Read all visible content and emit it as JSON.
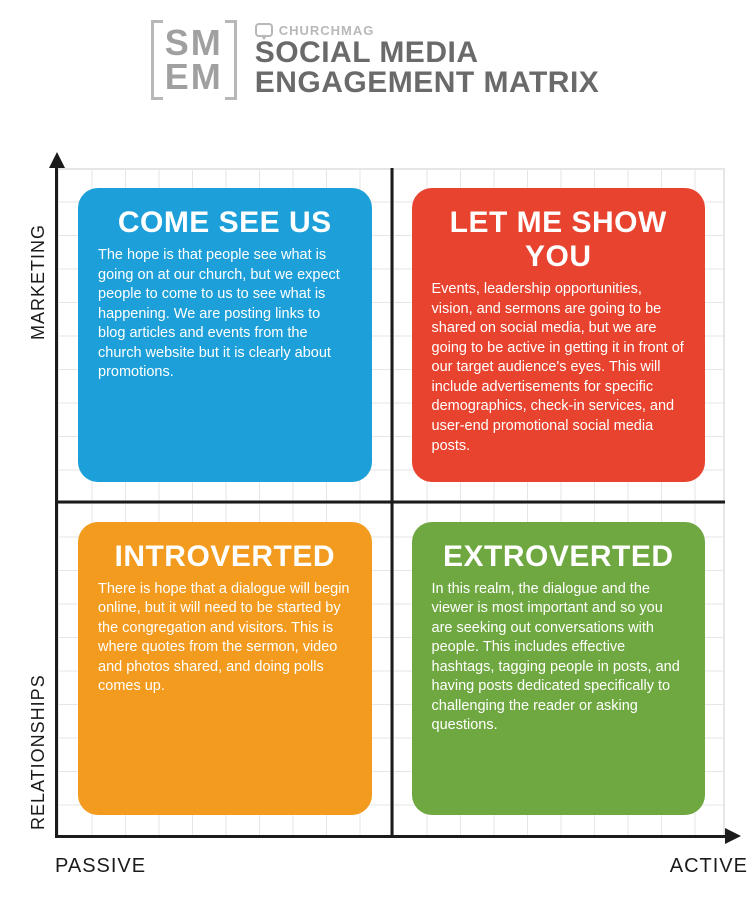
{
  "header": {
    "logo_line1": "SM",
    "logo_line2": "EM",
    "brand": "CHURCHMAG",
    "title_line1": "SOCIAL MEDIA",
    "title_line2": "ENGAGEMENT MATRIX"
  },
  "axes": {
    "y_top": "MARKETING",
    "y_bottom": "RELATIONSHIPS",
    "x_left": "PASSIVE",
    "x_right": "ACTIVE"
  },
  "matrix": {
    "type": "quadrant",
    "grid_color": "#e6e6e6",
    "axis_color": "#1b1b1b",
    "background_color": "#ffffff",
    "border_radius": 20,
    "title_fontsize": 30,
    "body_fontsize": 14.5,
    "quadrants": {
      "tl": {
        "title": "COME SEE US",
        "body": "The hope is that people see what is going on at our church, but we expect people to come to us to see what is happening. We are posting links to blog articles and events from the church website but it is clearly about promotions.",
        "color": "#1da0d9"
      },
      "tr": {
        "title": "LET ME SHOW YOU",
        "body": "Events, leadership opportunities, vision, and sermons are going to be shared on social media, but we are going to be active in getting it in front of our target audience's eyes. This will include advertisements for specific demographics, check-in services, and user-end promotional social media posts.",
        "color": "#e8432e"
      },
      "bl": {
        "title": "INTROVERTED",
        "body": "There is hope that a dialogue will begin online, but it will need to be started by the congregation and visitors. This is where quotes from the sermon, video and photos shared, and doing polls comes up.",
        "color": "#f39b1e"
      },
      "br": {
        "title": "EXTROVERTED",
        "body": "In this realm, the dialogue and the viewer is most important and so you are seeking out conversations with people. This includes effective hashtags, tagging people in posts, and having posts dedicated specifically to challenging the reader or asking questions.",
        "color": "#6fa841"
      }
    }
  }
}
